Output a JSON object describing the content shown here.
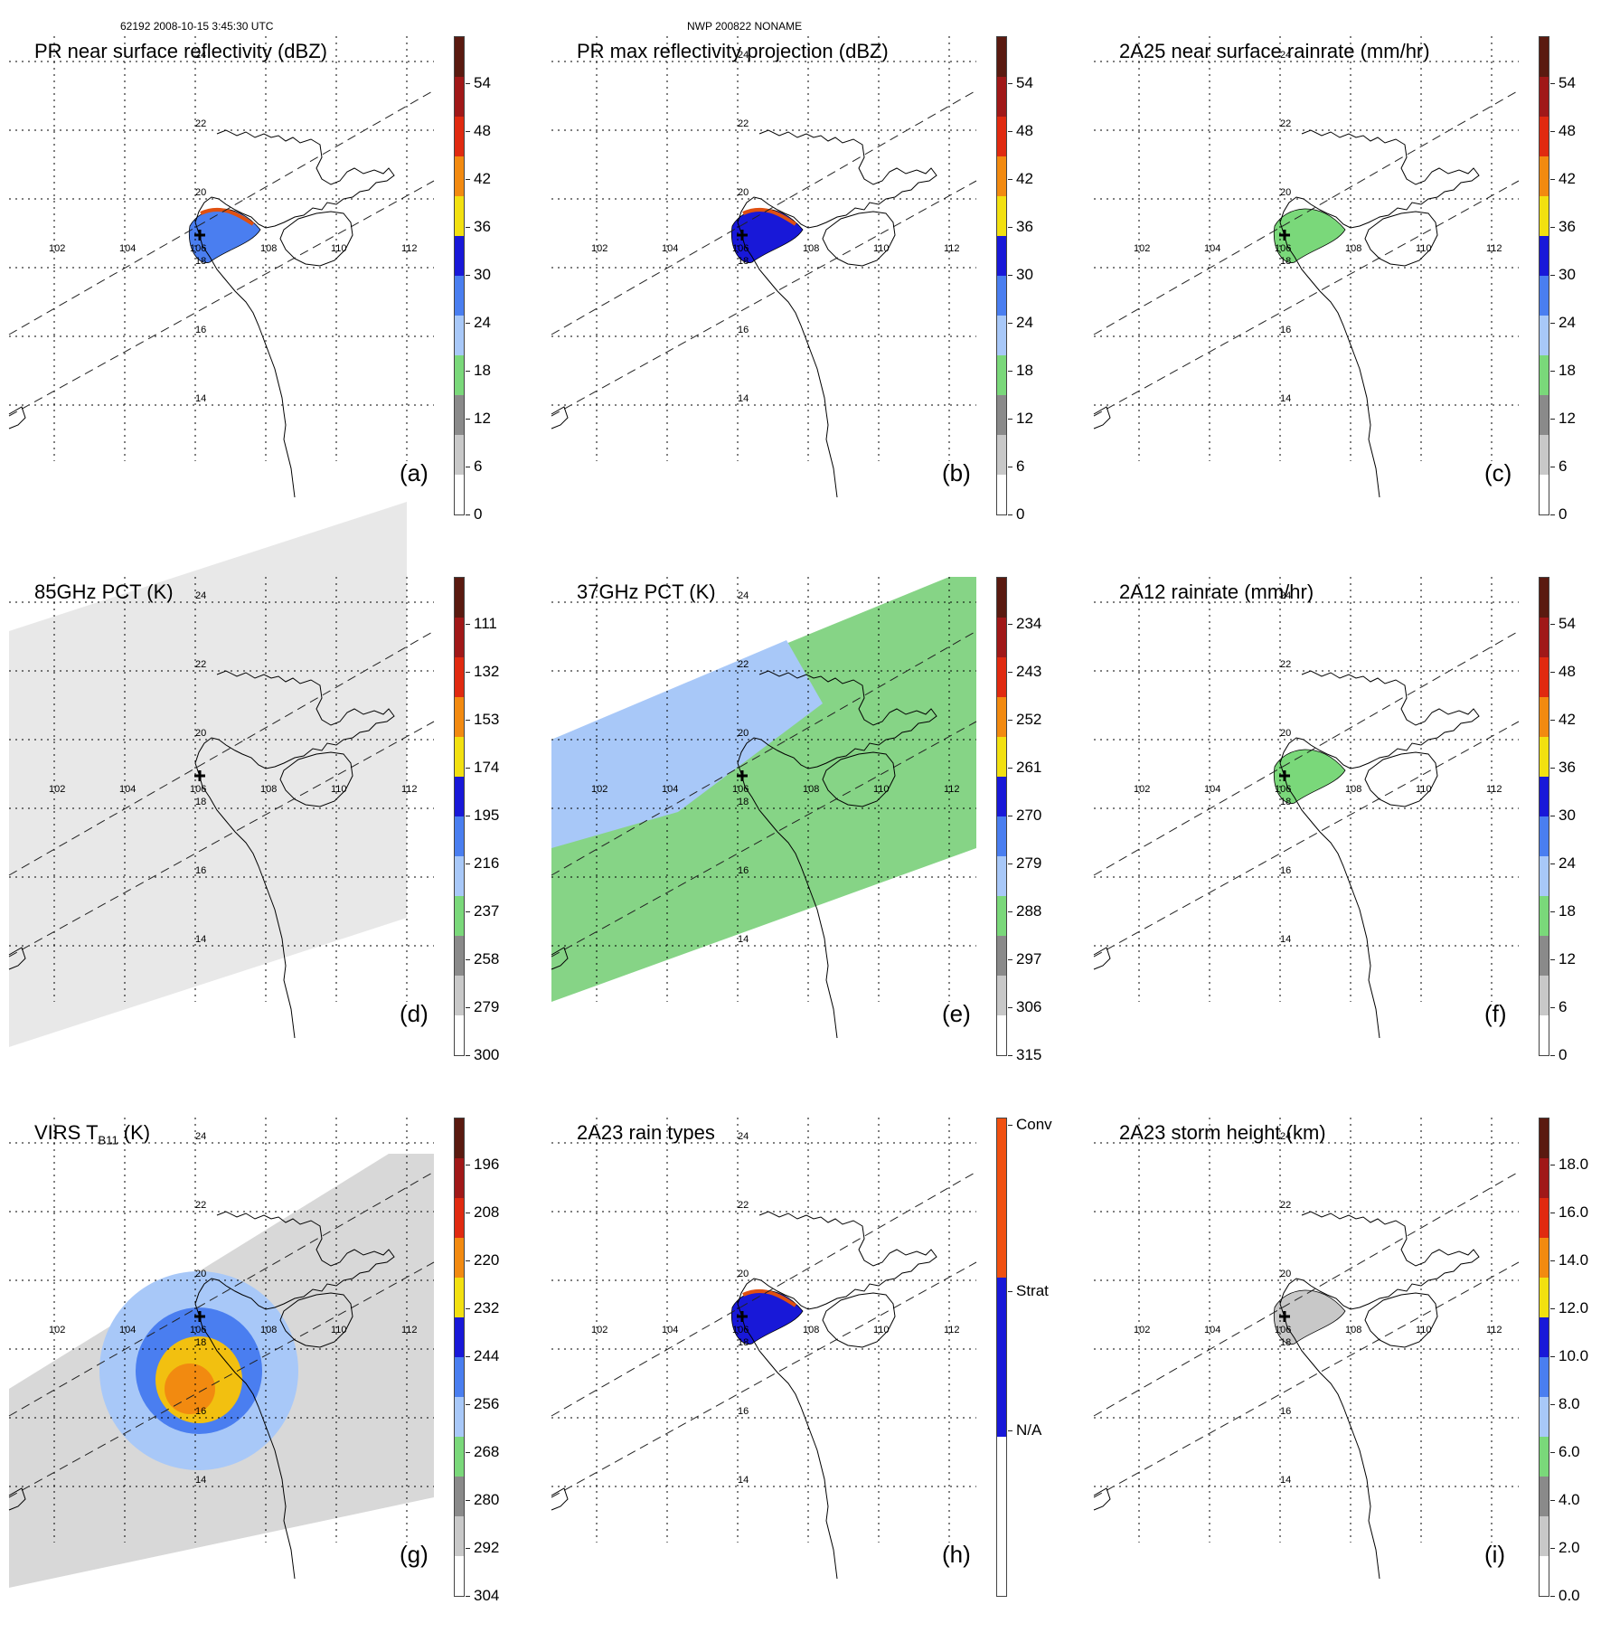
{
  "header": {
    "left": "62192 2008-10-15 3:45:30 UTC",
    "center": "NWP 200822 NONAME"
  },
  "map_labels": {
    "lon": [
      "102",
      "104",
      "106",
      "108",
      "110",
      "112"
    ],
    "lat": [
      "24",
      "22",
      "20",
      "18",
      "16",
      "14"
    ]
  },
  "panels": [
    {
      "id": "a",
      "title": "PR near surface reflectivity (dBZ)",
      "label": "(a)",
      "scale": {
        "ticks": [
          "54",
          "48",
          "42",
          "36",
          "30",
          "24",
          "18",
          "12",
          "6",
          "0"
        ],
        "colors": [
          "#5a1a10",
          "#a01818",
          "#e02a10",
          "#f28a10",
          "#f2e010",
          "#1818d8",
          "#4a7ef0",
          "#a8c8f8",
          "#7ad87a",
          "#8a8a8a",
          "#c8c8c8",
          "#ffffff"
        ]
      }
    },
    {
      "id": "b",
      "title": "PR max reflectivity projection (dBZ)",
      "label": "(b)",
      "scale": {
        "ticks": [
          "54",
          "48",
          "42",
          "36",
          "30",
          "24",
          "18",
          "12",
          "6",
          "0"
        ],
        "colors": [
          "#5a1a10",
          "#a01818",
          "#e02a10",
          "#f28a10",
          "#f2e010",
          "#1818d8",
          "#4a7ef0",
          "#a8c8f8",
          "#7ad87a",
          "#8a8a8a",
          "#c8c8c8",
          "#ffffff"
        ]
      }
    },
    {
      "id": "c",
      "title": "2A25 near surface rainrate (mm/hr)",
      "label": "(c)",
      "scale": {
        "ticks": [
          "54",
          "48",
          "42",
          "36",
          "30",
          "24",
          "18",
          "12",
          "6",
          "0"
        ],
        "colors": [
          "#5a1a10",
          "#a01818",
          "#e02a10",
          "#f28a10",
          "#f2e010",
          "#1818d8",
          "#4a7ef0",
          "#a8c8f8",
          "#7ad87a",
          "#8a8a8a",
          "#c8c8c8",
          "#ffffff"
        ]
      }
    },
    {
      "id": "d",
      "title": "85GHz PCT (K)",
      "label": "(d)",
      "scale": {
        "ticks": [
          "111",
          "132",
          "153",
          "174",
          "195",
          "216",
          "237",
          "258",
          "279",
          "300"
        ],
        "colors": [
          "#5a1a10",
          "#a01818",
          "#e02a10",
          "#f28a10",
          "#f2e010",
          "#1818d8",
          "#4a7ef0",
          "#a8c8f8",
          "#7ad87a",
          "#8a8a8a",
          "#c8c8c8",
          "#ffffff"
        ]
      }
    },
    {
      "id": "e",
      "title": "37GHz PCT (K)",
      "label": "(e)",
      "scale": {
        "ticks": [
          "234",
          "243",
          "252",
          "261",
          "270",
          "279",
          "288",
          "297",
          "306",
          "315"
        ],
        "colors": [
          "#5a1a10",
          "#a01818",
          "#e02a10",
          "#f28a10",
          "#f2e010",
          "#1818d8",
          "#4a7ef0",
          "#a8c8f8",
          "#7ad87a",
          "#8a8a8a",
          "#c8c8c8",
          "#ffffff"
        ]
      }
    },
    {
      "id": "f",
      "title": "2A12 rainrate (mm/hr)",
      "label": "(f)",
      "scale": {
        "ticks": [
          "54",
          "48",
          "42",
          "36",
          "30",
          "24",
          "18",
          "12",
          "6",
          "0"
        ],
        "colors": [
          "#5a1a10",
          "#a01818",
          "#e02a10",
          "#f28a10",
          "#f2e010",
          "#1818d8",
          "#4a7ef0",
          "#a8c8f8",
          "#7ad87a",
          "#8a8a8a",
          "#c8c8c8",
          "#ffffff"
        ]
      }
    },
    {
      "id": "g",
      "title_main": "VIRS T",
      "title_sub": "B11",
      "title_tail": " (K)",
      "label": "(g)",
      "scale": {
        "ticks": [
          "196",
          "208",
          "220",
          "232",
          "244",
          "256",
          "268",
          "280",
          "292",
          "304"
        ],
        "colors": [
          "#5a1a10",
          "#a01818",
          "#e02a10",
          "#f28a10",
          "#f2e010",
          "#1818d8",
          "#4a7ef0",
          "#a8c8f8",
          "#7ad87a",
          "#8a8a8a",
          "#c8c8c8",
          "#ffffff"
        ]
      }
    },
    {
      "id": "h",
      "title": "2A23 rain types",
      "label": "(h)",
      "scale": {
        "ticks": [
          "Conv",
          "Strat",
          "N/A"
        ],
        "colors": [
          "#f05010",
          "#1818d8",
          "#ffffff"
        ]
      }
    },
    {
      "id": "i",
      "title": "2A23 storm height (km)",
      "label": "(i)",
      "scale": {
        "ticks": [
          "18.0",
          "16.0",
          "14.0",
          "12.0",
          "10.0",
          "8.0",
          "6.0",
          "4.0",
          "2.0",
          "0.0"
        ],
        "colors": [
          "#5a1a10",
          "#a01818",
          "#e02a10",
          "#f28a10",
          "#f2e010",
          "#1818d8",
          "#4a7ef0",
          "#a8c8f8",
          "#7ad87a",
          "#8a8a8a",
          "#c8c8c8",
          "#ffffff"
        ]
      }
    }
  ]
}
